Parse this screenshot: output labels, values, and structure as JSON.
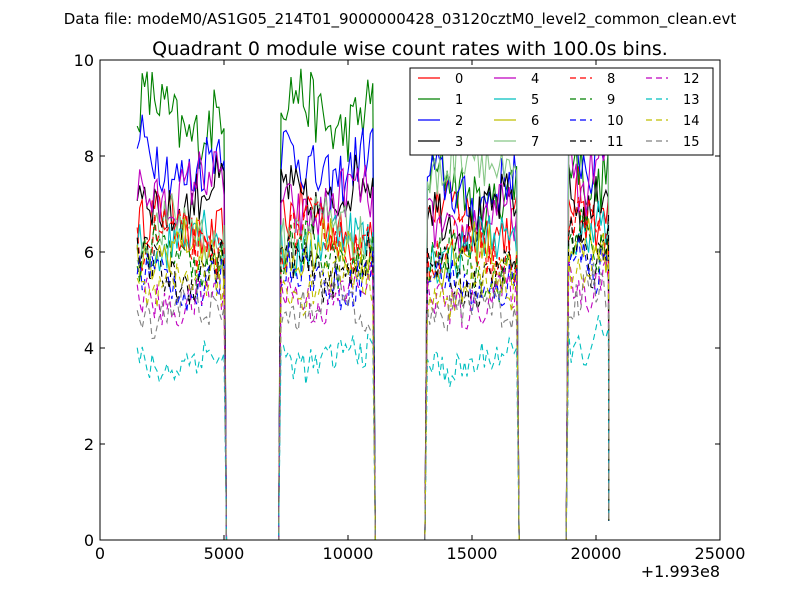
{
  "suptitle": "Data file: modeM0/AS1G05_214T01_9000000428_03120cztM0_level2_common_clean.evt",
  "chart_data": {
    "type": "line",
    "title": "Quadrant 0 module wise count rates with 100.0s bins.",
    "xlabel": "",
    "ylabel": "",
    "xlim": [
      0,
      25000
    ],
    "ylim": [
      0,
      10
    ],
    "x_offset_label": "+1.993e8",
    "xticks": [
      0,
      5000,
      10000,
      15000,
      20000,
      25000
    ],
    "xtick_labels": [
      "0",
      "5000",
      "10000",
      "15000",
      "20000",
      "25000"
    ],
    "yticks": [
      0,
      2,
      4,
      6,
      8,
      10
    ],
    "ytick_labels": [
      "0",
      "2",
      "4",
      "6",
      "8",
      "10"
    ],
    "grid": false,
    "legend_position": "top-right",
    "legend_columns": 4,
    "segments": [
      [
        1500,
        5000
      ],
      [
        7300,
        11000
      ],
      [
        13200,
        16800
      ],
      [
        18900,
        20500
      ]
    ],
    "series": [
      {
        "name": "0",
        "color": "#ff0000",
        "dash": "solid",
        "levels": [
          6.5,
          6.6,
          6.7,
          6.9
        ]
      },
      {
        "name": "1",
        "color": "#008000",
        "dash": "solid",
        "levels": [
          8.8,
          8.9,
          7.3,
          7.6
        ]
      },
      {
        "name": "2",
        "color": "#0000ff",
        "dash": "solid",
        "levels": [
          7.9,
          7.8,
          7.3,
          8.1
        ]
      },
      {
        "name": "3",
        "color": "#000000",
        "dash": "solid",
        "levels": [
          7.1,
          7.2,
          6.8,
          7.0
        ]
      },
      {
        "name": "4",
        "color": "#bf00bf",
        "dash": "solid",
        "levels": [
          7.3,
          7.0,
          6.6,
          7.6
        ]
      },
      {
        "name": "5",
        "color": "#00bfbf",
        "dash": "solid",
        "levels": [
          6.3,
          6.2,
          6.1,
          6.4
        ]
      },
      {
        "name": "6",
        "color": "#bfbf00",
        "dash": "solid",
        "levels": [
          6.0,
          6.0,
          5.9,
          6.1
        ]
      },
      {
        "name": "7",
        "color": "#88c888",
        "dash": "solid",
        "levels": [
          6.4,
          6.5,
          7.8,
          8.6
        ]
      },
      {
        "name": "8",
        "color": "#ff0000",
        "dash": "dashed",
        "levels": [
          6.2,
          6.3,
          6.0,
          6.5
        ]
      },
      {
        "name": "9",
        "color": "#008000",
        "dash": "dashed",
        "levels": [
          5.8,
          5.9,
          5.7,
          6.2
        ]
      },
      {
        "name": "10",
        "color": "#0000ff",
        "dash": "dashed",
        "levels": [
          5.4,
          5.5,
          5.3,
          5.9
        ]
      },
      {
        "name": "11",
        "color": "#000000",
        "dash": "dashed",
        "levels": [
          5.6,
          5.7,
          5.5,
          6.0
        ]
      },
      {
        "name": "12",
        "color": "#bf00bf",
        "dash": "dashed",
        "levels": [
          5.0,
          5.1,
          5.0,
          5.4
        ]
      },
      {
        "name": "13",
        "color": "#00bfbf",
        "dash": "dashed",
        "levels": [
          3.7,
          3.8,
          3.7,
          4.1
        ]
      },
      {
        "name": "14",
        "color": "#bfbf00",
        "dash": "dashed",
        "levels": [
          5.3,
          5.4,
          5.2,
          5.7
        ]
      },
      {
        "name": "15",
        "color": "#808080",
        "dash": "dashed",
        "levels": [
          4.8,
          4.9,
          4.8,
          5.2
        ]
      }
    ]
  }
}
